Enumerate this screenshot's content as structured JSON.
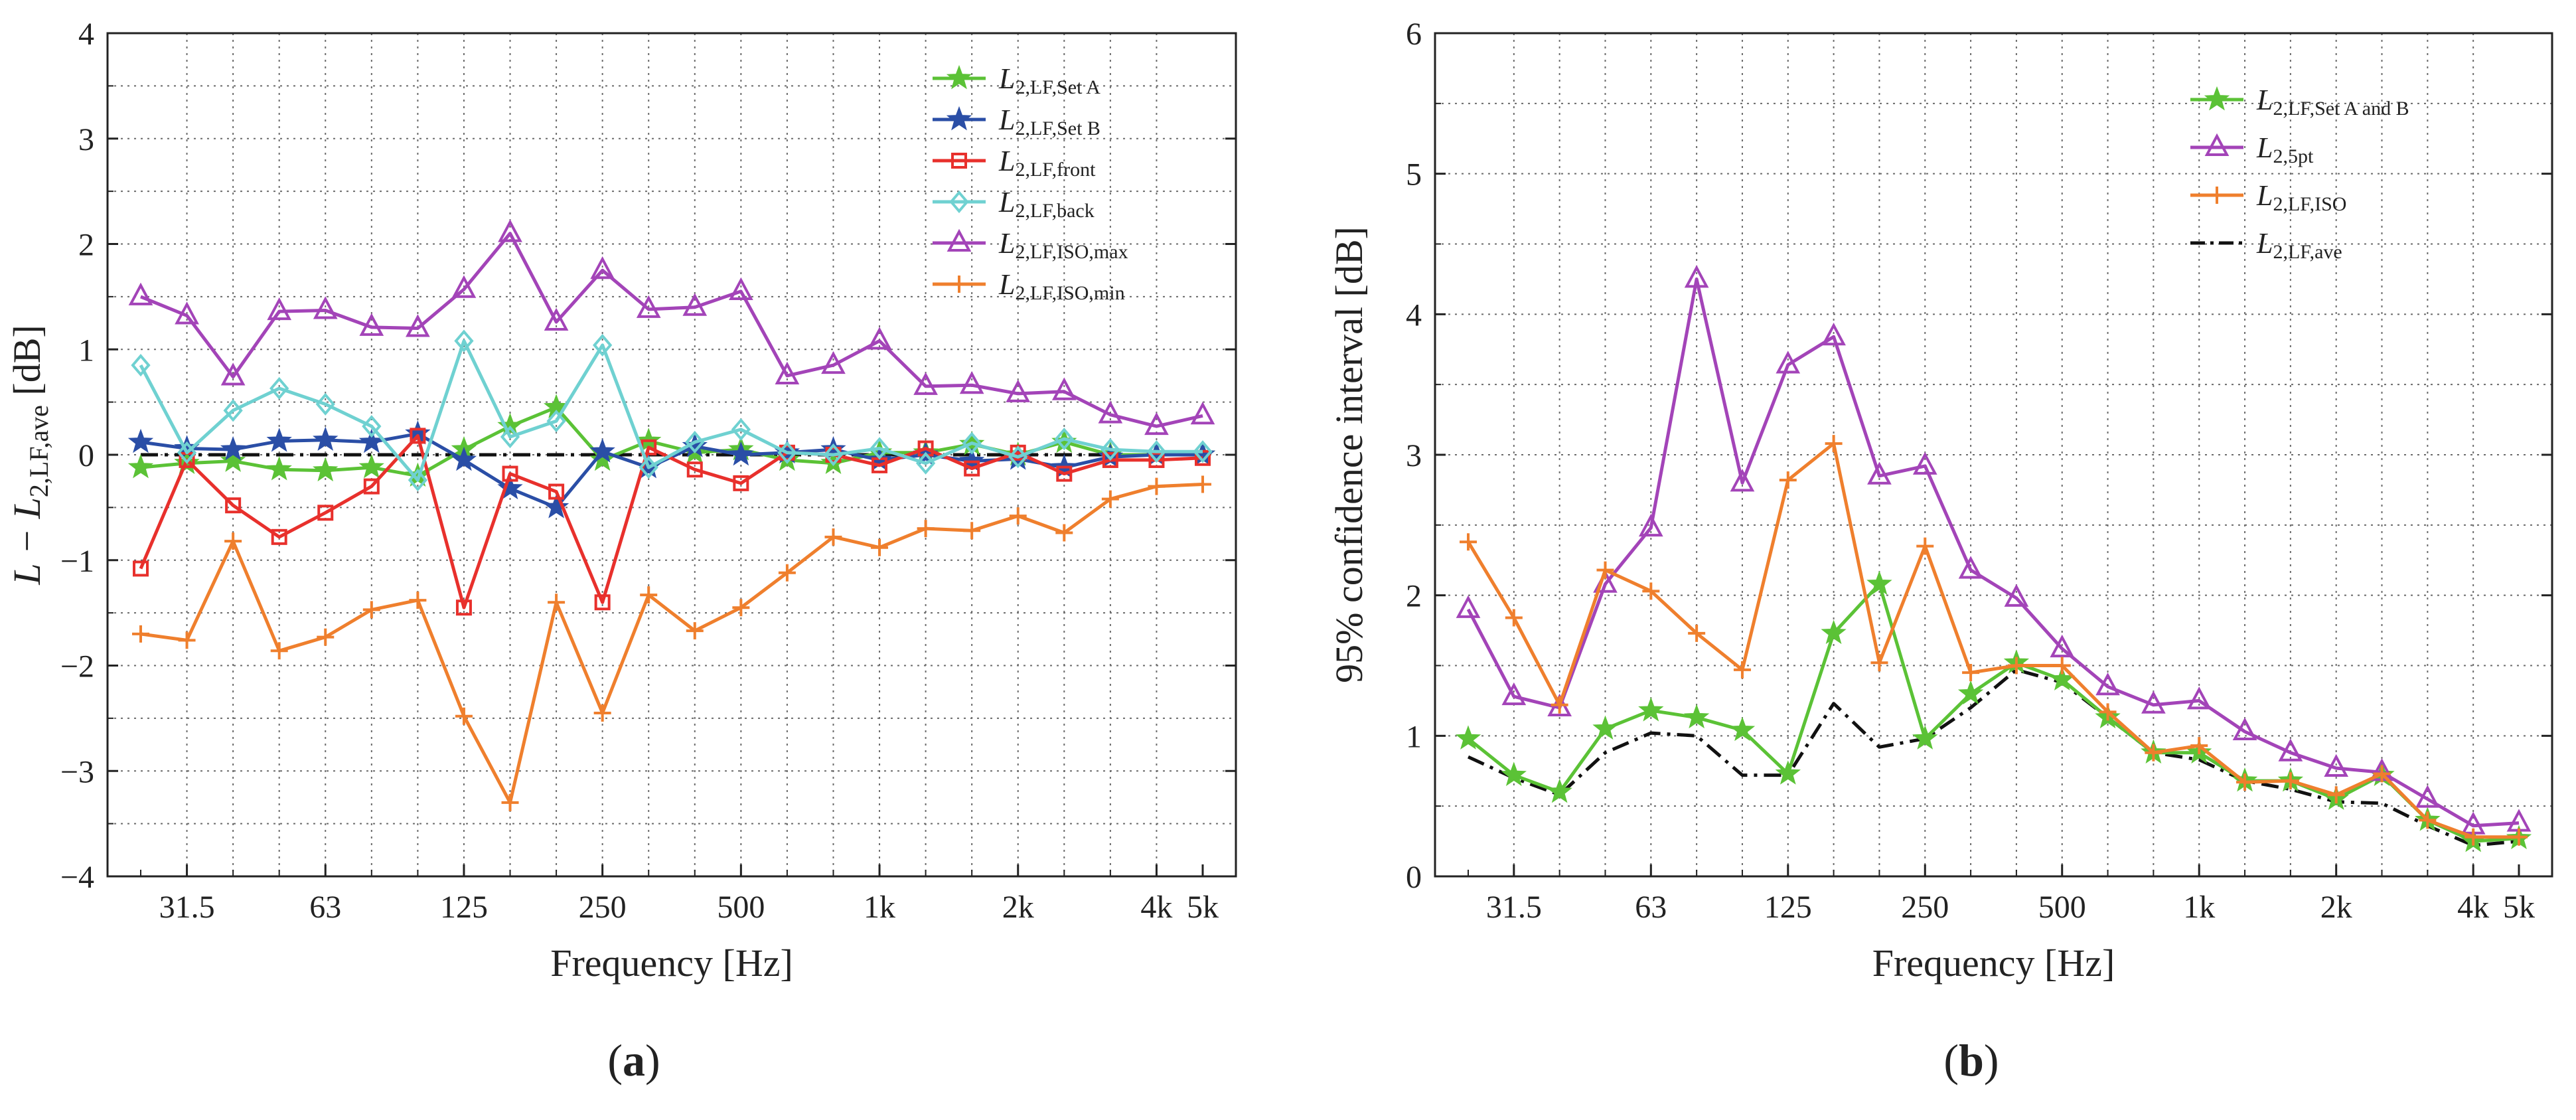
{
  "figure": {
    "panel_labels": [
      "(a)",
      "(b)"
    ]
  },
  "colors": {
    "setA": "#5bc236",
    "setB": "#2a4ea6",
    "front": "#e8302c",
    "back": "#6fd1d1",
    "isoMax": "#a344b8",
    "isoMin": "#ef7f2d",
    "ave": "#111111",
    "grid": "#6b6b6b"
  },
  "chart_data": [
    {
      "id": "a",
      "type": "line",
      "panel_label": "(a)",
      "xlabel": "Frequency [Hz]",
      "ylabel": "L − L2,LF,ave [dB]",
      "ylabel_parts": {
        "main": "L − L",
        "sub": "2,LF,ave",
        "unit": " [dB]"
      },
      "ylim": [
        -4,
        4
      ],
      "yticks": [
        "4",
        "3",
        "2",
        "1",
        "0",
        "−1",
        "−2",
        "−3",
        "−4"
      ],
      "x_tick_labels": [
        "31.5",
        "63",
        "125",
        "250",
        "500",
        "1k",
        "2k",
        "4k",
        "5k"
      ],
      "x_tick_positions": [
        2,
        5,
        8,
        11,
        14,
        17,
        20,
        23,
        24
      ],
      "x_bands": [
        "25",
        "31.5",
        "40",
        "50",
        "63",
        "80",
        "100",
        "125",
        "160",
        "200",
        "250",
        "315",
        "400",
        "500",
        "630",
        "800",
        "1k",
        "1.25k",
        "1.6k",
        "2k",
        "2.5k",
        "3.15k",
        "4k",
        "5k"
      ],
      "grid": true,
      "legend_position": "top-right",
      "series": [
        {
          "key": "setA",
          "legend_main": "L",
          "legend_sub": "2,LF,Set A",
          "marker": "star",
          "values": [
            -0.12,
            -0.08,
            -0.06,
            -0.14,
            -0.15,
            -0.12,
            -0.2,
            0.05,
            0.27,
            0.45,
            -0.05,
            0.13,
            0.02,
            0.05,
            -0.05,
            -0.08,
            0.02,
            0.02,
            0.1,
            0.0,
            0.12,
            0.0,
            0.0,
            0.0
          ]
        },
        {
          "key": "setB",
          "legend_main": "L",
          "legend_sub": "2,LF,Set B",
          "marker": "star",
          "values": [
            0.12,
            0.06,
            0.05,
            0.13,
            0.14,
            0.12,
            0.2,
            -0.05,
            -0.32,
            -0.5,
            0.03,
            -0.12,
            0.08,
            0.0,
            0.02,
            0.05,
            -0.05,
            0.0,
            -0.06,
            -0.04,
            -0.12,
            -0.02,
            0.0,
            0.0
          ]
        },
        {
          "key": "front",
          "legend_main": "L",
          "legend_sub": "2,LF,front",
          "marker": "square",
          "values": [
            -1.08,
            -0.05,
            -0.48,
            -0.78,
            -0.55,
            -0.3,
            0.18,
            -1.45,
            -0.18,
            -0.35,
            -1.4,
            0.07,
            -0.14,
            -0.27,
            0.02,
            0.0,
            -0.1,
            0.06,
            -0.13,
            0.02,
            -0.18,
            -0.05,
            -0.05,
            -0.03
          ]
        },
        {
          "key": "back",
          "legend_main": "L",
          "legend_sub": "2,LF,back",
          "marker": "diamond",
          "values": [
            0.85,
            0.02,
            0.42,
            0.63,
            0.48,
            0.27,
            -0.24,
            1.08,
            0.17,
            0.32,
            1.04,
            -0.12,
            0.12,
            0.24,
            0.02,
            0.0,
            0.06,
            -0.08,
            0.11,
            -0.02,
            0.15,
            0.05,
            0.03,
            0.03
          ]
        },
        {
          "key": "isoMax",
          "legend_main": "L",
          "legend_sub": "2,LF,ISO,max",
          "marker": "triangle",
          "values": [
            1.5,
            1.32,
            0.74,
            1.36,
            1.37,
            1.21,
            1.2,
            1.57,
            2.1,
            1.26,
            1.75,
            1.38,
            1.4,
            1.55,
            0.75,
            0.85,
            1.08,
            0.65,
            0.66,
            0.58,
            0.6,
            0.38,
            0.27,
            0.37
          ]
        },
        {
          "key": "isoMin",
          "legend_main": "L",
          "legend_sub": "2,LF,ISO,min",
          "marker": "plus",
          "values": [
            -1.7,
            -1.76,
            -0.82,
            -1.86,
            -1.73,
            -1.47,
            -1.38,
            -2.48,
            -3.3,
            -1.4,
            -2.45,
            -1.33,
            -1.67,
            -1.45,
            -1.12,
            -0.78,
            -0.88,
            -0.7,
            -0.72,
            -0.58,
            -0.74,
            -0.42,
            -0.3,
            -0.28
          ]
        },
        {
          "key": "ave",
          "legend_main": "",
          "legend_sub": "",
          "marker": "none",
          "dash": true,
          "values": [
            0,
            0,
            0,
            0,
            0,
            0,
            0,
            0,
            0,
            0,
            0,
            0,
            0,
            0,
            0,
            0,
            0,
            0,
            0,
            0,
            0,
            0,
            0,
            0
          ]
        }
      ]
    },
    {
      "id": "b",
      "type": "line",
      "panel_label": "(b)",
      "xlabel": "Frequency [Hz]",
      "ylabel": "95% confidence interval [dB]",
      "ylim": [
        0,
        6
      ],
      "yticks": [
        "6",
        "5",
        "4",
        "3",
        "2",
        "1",
        "0"
      ],
      "x_tick_labels": [
        "31.5",
        "63",
        "125",
        "250",
        "500",
        "1k",
        "2k",
        "4k",
        "5k"
      ],
      "x_tick_positions": [
        2,
        5,
        8,
        11,
        14,
        17,
        20,
        23,
        24
      ],
      "x_bands": [
        "25",
        "31.5",
        "40",
        "50",
        "63",
        "80",
        "100",
        "125",
        "160",
        "200",
        "250",
        "315",
        "400",
        "500",
        "630",
        "800",
        "1k",
        "1.25k",
        "1.6k",
        "2k",
        "2.5k",
        "3.15k",
        "4k",
        "5k"
      ],
      "grid": true,
      "legend_position": "top-right",
      "series": [
        {
          "key": "setA",
          "legend_main": "L",
          "legend_sub": "2,LF,Set A and B",
          "marker": "star",
          "values": [
            0.98,
            0.72,
            0.6,
            1.05,
            1.18,
            1.13,
            1.04,
            0.73,
            1.73,
            2.08,
            0.98,
            1.3,
            1.52,
            1.4,
            1.13,
            0.88,
            0.88,
            0.68,
            0.68,
            0.55,
            0.72,
            0.4,
            0.25,
            0.27
          ]
        },
        {
          "key": "isoMax",
          "legend_main": "L",
          "legend_sub": "2,5pt",
          "marker": "triangle",
          "values": [
            1.9,
            1.28,
            1.2,
            2.08,
            2.48,
            4.25,
            2.8,
            3.64,
            3.84,
            2.85,
            2.92,
            2.18,
            1.98,
            1.62,
            1.35,
            1.22,
            1.25,
            1.03,
            0.88,
            0.77,
            0.74,
            0.55,
            0.36,
            0.38
          ]
        },
        {
          "key": "isoMin",
          "legend_main": "L",
          "legend_sub": "2,LF,ISO",
          "marker": "plus",
          "values": [
            2.38,
            1.84,
            1.22,
            2.18,
            2.03,
            1.73,
            1.47,
            2.82,
            3.08,
            1.52,
            2.35,
            1.45,
            1.5,
            1.5,
            1.17,
            0.88,
            0.93,
            0.67,
            0.68,
            0.58,
            0.73,
            0.4,
            0.28,
            0.28
          ]
        },
        {
          "key": "ave",
          "legend_main": "L",
          "legend_sub": "2,LF,ave",
          "marker": "none",
          "dash": true,
          "values": [
            0.85,
            0.7,
            0.58,
            0.88,
            1.02,
            1.0,
            0.72,
            0.72,
            1.23,
            0.92,
            0.98,
            1.2,
            1.47,
            1.38,
            1.13,
            0.88,
            0.83,
            0.68,
            0.62,
            0.53,
            0.52,
            0.36,
            0.22,
            0.25
          ]
        }
      ]
    }
  ]
}
